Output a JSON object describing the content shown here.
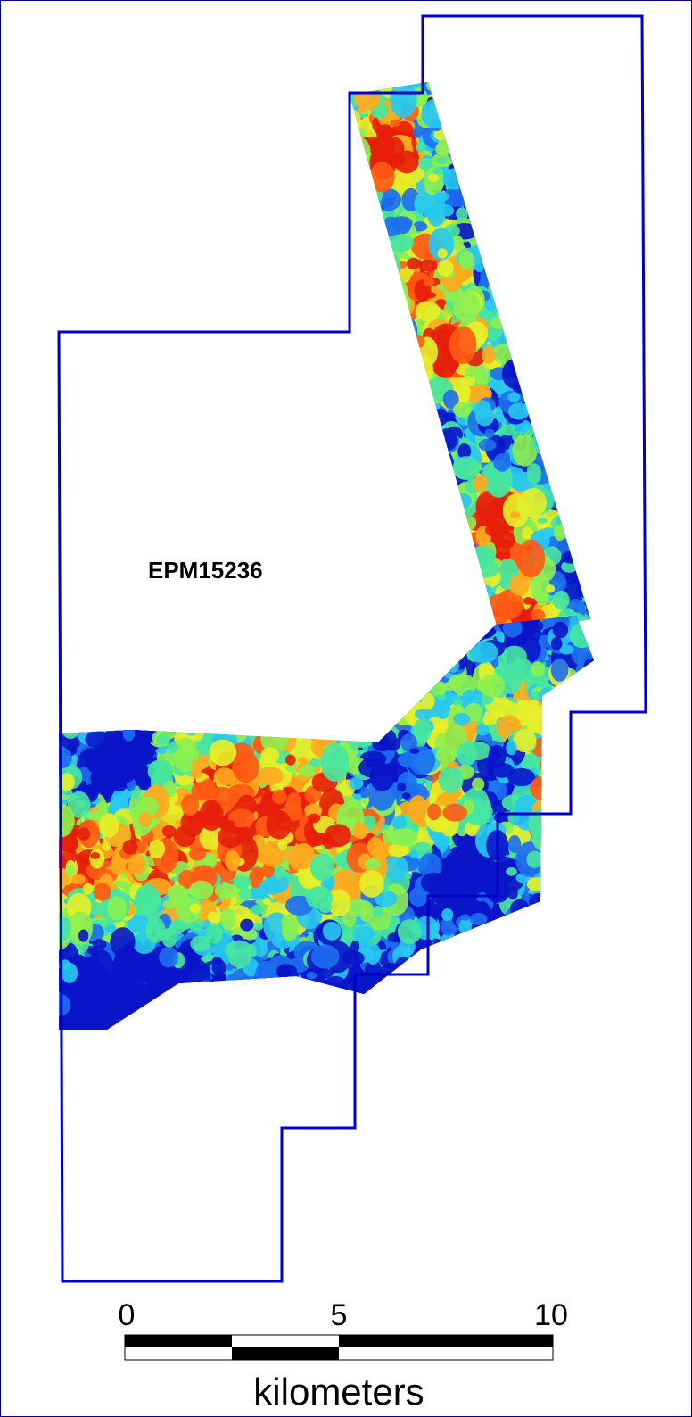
{
  "map": {
    "tenement_label": "EPM15236",
    "boundary_color": "#0000c8",
    "colormap": [
      "#0a14c8",
      "#1e6ef0",
      "#28c8f0",
      "#46e6a0",
      "#8cf050",
      "#e6f028",
      "#ffaa1e",
      "#ff5a14",
      "#e61e0a"
    ]
  },
  "scale_bar": {
    "ticks": [
      "0",
      "5",
      "10"
    ],
    "unit": "kilometers"
  }
}
